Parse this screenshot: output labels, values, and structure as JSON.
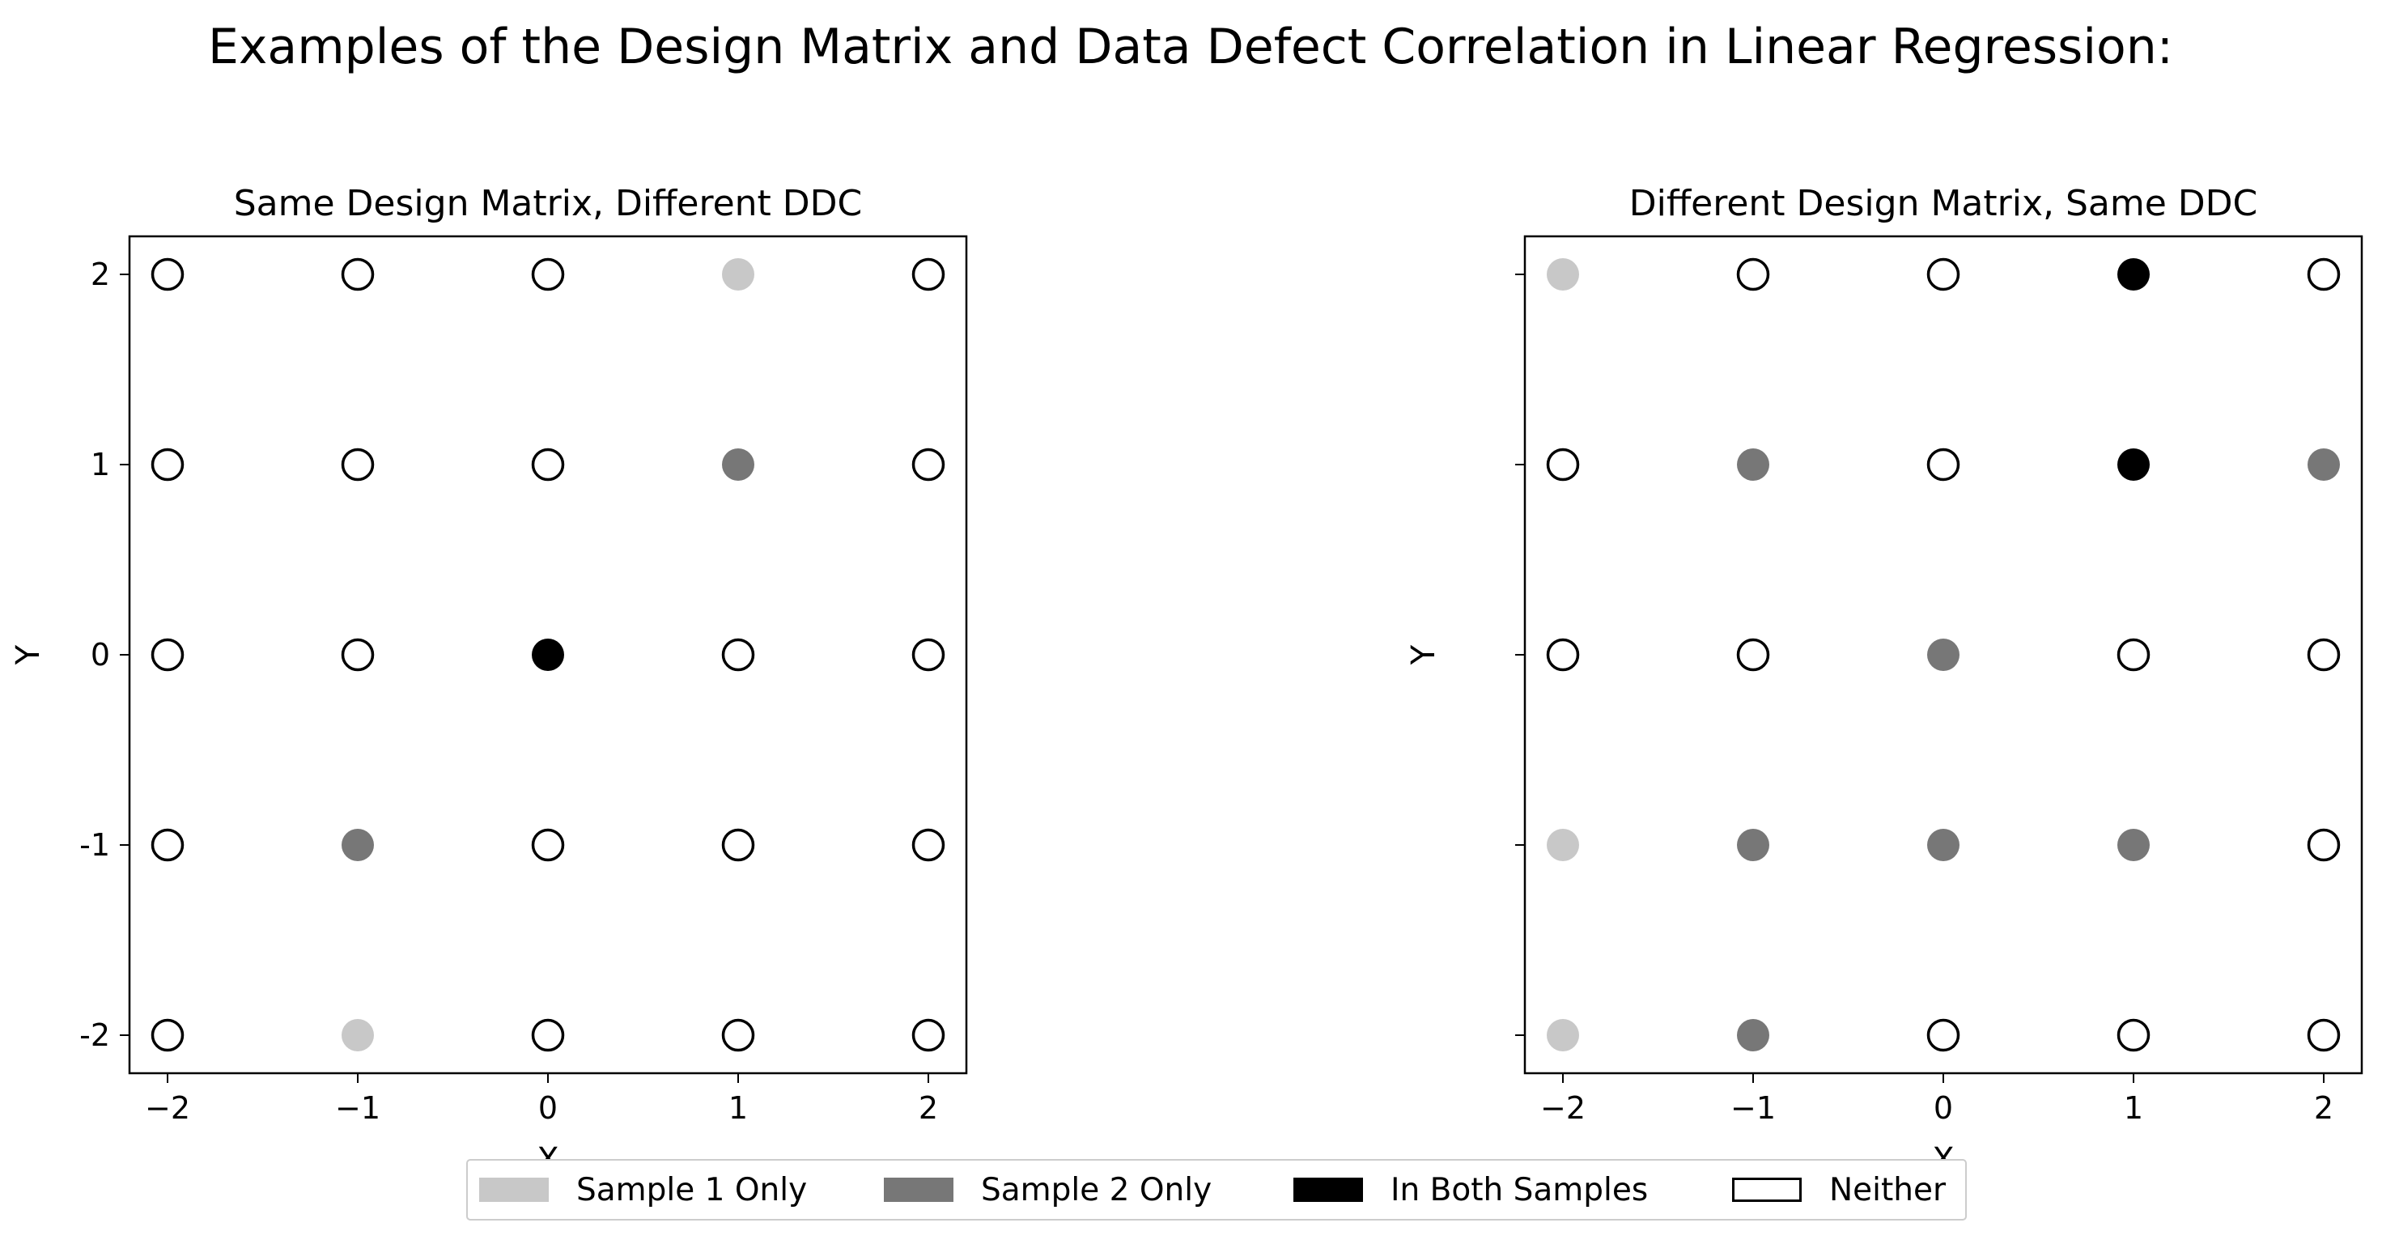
{
  "figure": {
    "title": "Examples of the Design Matrix and Data Defect Correlation in Linear Regression:"
  },
  "colors": {
    "sample1": "#c8c8c8",
    "sample2": "#777777",
    "both": "#000000",
    "neither": "#ffffff",
    "edge": "#000000"
  },
  "legend": {
    "placement": "lower-center",
    "items": [
      {
        "key": "sample1",
        "label": "Sample 1 Only"
      },
      {
        "key": "sample2",
        "label": "Sample 2 Only"
      },
      {
        "key": "both",
        "label": "In Both Samples"
      },
      {
        "key": "neither",
        "label": "Neither"
      }
    ]
  },
  "chart_data": [
    {
      "type": "scatter",
      "title": "Same Design Matrix, Different DDC",
      "xlabel": "X",
      "ylabel": "Y",
      "xlim": [
        -2.2,
        2.2
      ],
      "ylim": [
        -2.2,
        2.2
      ],
      "xticks": [
        "−2",
        "−1",
        "0",
        "1",
        "2"
      ],
      "yticks": [
        "-2",
        "-1",
        "0",
        "1",
        "2"
      ],
      "grid": false,
      "points": [
        {
          "x": -2,
          "y": 2,
          "category": "neither"
        },
        {
          "x": -1,
          "y": 2,
          "category": "neither"
        },
        {
          "x": 0,
          "y": 2,
          "category": "neither"
        },
        {
          "x": 1,
          "y": 2,
          "category": "sample1"
        },
        {
          "x": 2,
          "y": 2,
          "category": "neither"
        },
        {
          "x": -2,
          "y": 1,
          "category": "neither"
        },
        {
          "x": -1,
          "y": 1,
          "category": "neither"
        },
        {
          "x": 0,
          "y": 1,
          "category": "neither"
        },
        {
          "x": 1,
          "y": 1,
          "category": "sample2"
        },
        {
          "x": 2,
          "y": 1,
          "category": "neither"
        },
        {
          "x": -2,
          "y": 0,
          "category": "neither"
        },
        {
          "x": -1,
          "y": 0,
          "category": "neither"
        },
        {
          "x": 0,
          "y": 0,
          "category": "both"
        },
        {
          "x": 1,
          "y": 0,
          "category": "neither"
        },
        {
          "x": 2,
          "y": 0,
          "category": "neither"
        },
        {
          "x": -2,
          "y": -1,
          "category": "neither"
        },
        {
          "x": -1,
          "y": -1,
          "category": "sample2"
        },
        {
          "x": 0,
          "y": -1,
          "category": "neither"
        },
        {
          "x": 1,
          "y": -1,
          "category": "neither"
        },
        {
          "x": 2,
          "y": -1,
          "category": "neither"
        },
        {
          "x": -2,
          "y": -2,
          "category": "neither"
        },
        {
          "x": -1,
          "y": -2,
          "category": "sample1"
        },
        {
          "x": 0,
          "y": -2,
          "category": "neither"
        },
        {
          "x": 1,
          "y": -2,
          "category": "neither"
        },
        {
          "x": 2,
          "y": -2,
          "category": "neither"
        }
      ]
    },
    {
      "type": "scatter",
      "title": "Different Design Matrix, Same DDC",
      "xlabel": "X",
      "ylabel": "Y",
      "xlim": [
        -2.2,
        2.2
      ],
      "ylim": [
        -2.2,
        2.2
      ],
      "xticks": [
        "−2",
        "−1",
        "0",
        "1",
        "2"
      ],
      "yticks": [
        "",
        "",
        "",
        "",
        ""
      ],
      "grid": false,
      "points": [
        {
          "x": -2,
          "y": 2,
          "category": "sample1"
        },
        {
          "x": -1,
          "y": 2,
          "category": "neither"
        },
        {
          "x": 0,
          "y": 2,
          "category": "neither"
        },
        {
          "x": 1,
          "y": 2,
          "category": "both"
        },
        {
          "x": 2,
          "y": 2,
          "category": "neither"
        },
        {
          "x": -2,
          "y": 1,
          "category": "neither"
        },
        {
          "x": -1,
          "y": 1,
          "category": "sample2"
        },
        {
          "x": 0,
          "y": 1,
          "category": "neither"
        },
        {
          "x": 1,
          "y": 1,
          "category": "both"
        },
        {
          "x": 2,
          "y": 1,
          "category": "sample2"
        },
        {
          "x": -2,
          "y": 0,
          "category": "neither"
        },
        {
          "x": -1,
          "y": 0,
          "category": "neither"
        },
        {
          "x": 0,
          "y": 0,
          "category": "sample2"
        },
        {
          "x": 1,
          "y": 0,
          "category": "neither"
        },
        {
          "x": 2,
          "y": 0,
          "category": "neither"
        },
        {
          "x": -2,
          "y": -1,
          "category": "sample1"
        },
        {
          "x": -1,
          "y": -1,
          "category": "sample2"
        },
        {
          "x": 0,
          "y": -1,
          "category": "sample2"
        },
        {
          "x": 1,
          "y": -1,
          "category": "sample2"
        },
        {
          "x": 2,
          "y": -1,
          "category": "neither"
        },
        {
          "x": -2,
          "y": -2,
          "category": "sample1"
        },
        {
          "x": -1,
          "y": -2,
          "category": "sample2"
        },
        {
          "x": 0,
          "y": -2,
          "category": "neither"
        },
        {
          "x": 1,
          "y": -2,
          "category": "neither"
        },
        {
          "x": 2,
          "y": -2,
          "category": "neither"
        }
      ]
    }
  ]
}
